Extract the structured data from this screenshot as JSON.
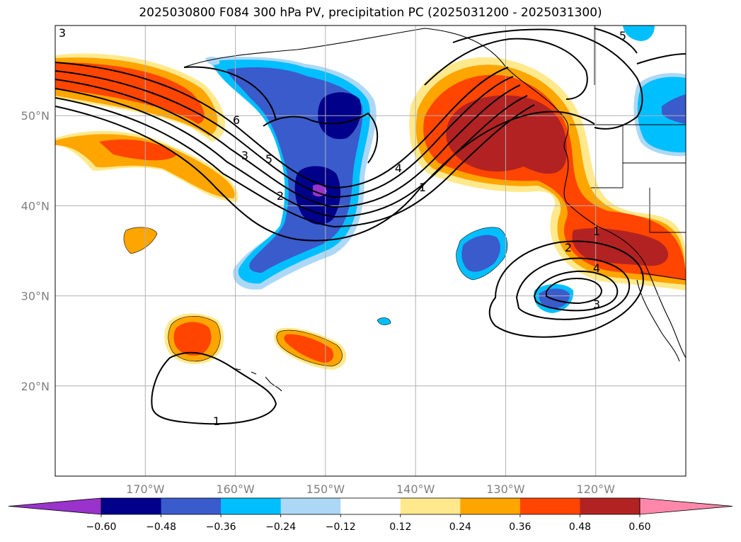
{
  "title": "2025030800 F084 300 hPa PV, precipitation PC (2025031200 - 2025031300)",
  "chart_data": {
    "type": "heatmap",
    "title": "2025030800 F084 300 hPa PV, precipitation PC (2025031200 - 2025031300)",
    "map_extent": {
      "lon": [
        -180,
        -110
      ],
      "lat": [
        10,
        60
      ]
    },
    "grid": true,
    "x_ticks": [
      "170°W",
      "160°W",
      "150°W",
      "140°W",
      "130°W",
      "120°W"
    ],
    "y_ticks": [
      "50°N",
      "40°N",
      "30°N",
      "20°N"
    ],
    "colorbar": {
      "levels": [
        -0.6,
        -0.48,
        -0.36,
        -0.24,
        -0.12,
        0.12,
        0.24,
        0.36,
        0.48,
        0.6
      ],
      "labels": [
        "−0.60",
        "−0.48",
        "−0.36",
        "−0.24",
        "−0.12",
        "0.12",
        "0.24",
        "0.36",
        "0.48",
        "0.60"
      ],
      "colors": [
        "#9933cc",
        "#00008b",
        "#3a5bcc",
        "#00bfff",
        "#add8f5",
        "#ffffff",
        "#ffe98c",
        "#ffa500",
        "#ff4500",
        "#b22222",
        "#ff88aa"
      ],
      "extend": "both"
    },
    "contour_labels": [
      "6",
      "3",
      "5",
      "2",
      "4",
      "1",
      "5",
      "3",
      "1",
      "2",
      "4",
      "3",
      "1"
    ],
    "features": [
      {
        "name": "positive-pc-northeast-pacific",
        "sign": "positive",
        "max_level": 0.48,
        "center": [
          -130,
          47
        ]
      },
      {
        "name": "positive-pc-california",
        "sign": "positive",
        "max_level": 0.48,
        "center": [
          -118,
          35
        ]
      },
      {
        "name": "positive-pc-north-pacific-band",
        "sign": "positive",
        "max_level": 0.36,
        "center": [
          -168,
          50
        ]
      },
      {
        "name": "negative-pc-central-pacific",
        "sign": "negative",
        "min_level": -0.6,
        "center": [
          -150,
          42
        ]
      },
      {
        "name": "negative-pc-subtropical",
        "sign": "negative",
        "min_level": -0.36,
        "center": [
          -133,
          34
        ]
      },
      {
        "name": "negative-pc-canada",
        "sign": "negative",
        "min_level": -0.36,
        "center": [
          -113,
          51
        ]
      },
      {
        "name": "positive-pc-hawaii-west",
        "sign": "positive",
        "max_level": 0.36,
        "center": [
          -165,
          25
        ]
      },
      {
        "name": "positive-pc-hawaii-east",
        "sign": "positive",
        "max_level": 0.36,
        "center": [
          -152,
          24
        ]
      }
    ]
  }
}
